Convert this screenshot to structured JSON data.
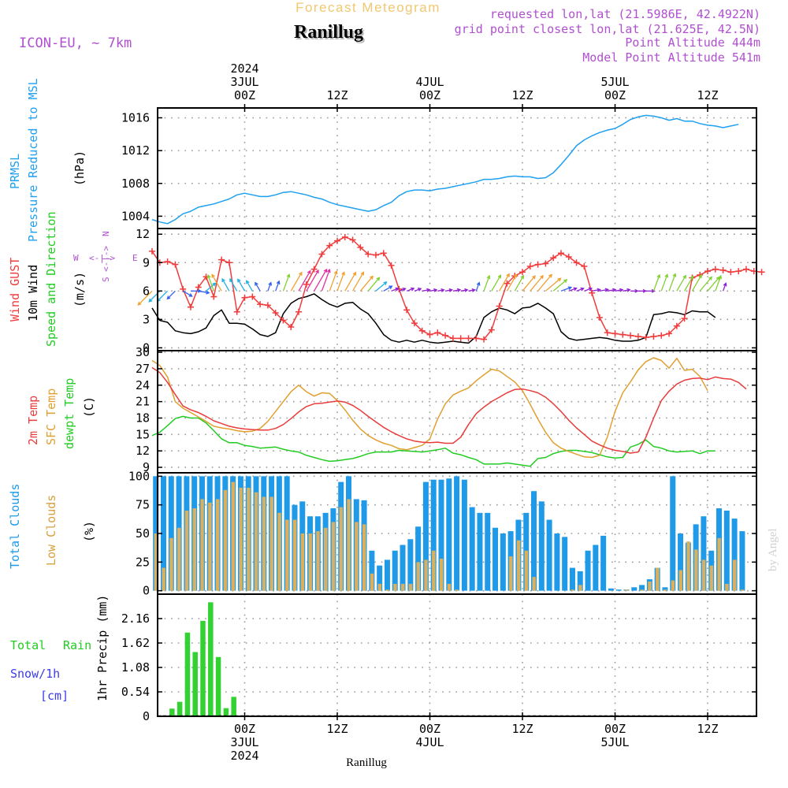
{
  "header": {
    "super_title": "Forecast Meteogram",
    "location": "Ranillug",
    "model": "ICON-EU, ~ 7km",
    "requested": "requested lon,lat (21.5986E, 42.4922N)",
    "grid_point": "grid point closest lon,lat (21.625E, 42.5N)",
    "point_alt": "Point Altitude 444m",
    "model_alt": "Model Point Altitude 541m",
    "footer_location": "Ranillug",
    "credit": "by Angel"
  },
  "colors": {
    "pressure": "#1fa0f0",
    "gust": "#f03c3c",
    "wind": "#000000",
    "temp": "#e83c3c",
    "sfc": "#e0a030",
    "dewpt": "#22cc22",
    "total_clouds": "#1e9ae8",
    "low_clouds": "#d8b060",
    "rain": "#32d232",
    "snow": "#3c3ce6",
    "label_purple": "#b050d0",
    "title_color": "#f0c870"
  },
  "time_axis": {
    "top_labels": [
      {
        "line1": "2024",
        "line2": "3JUL",
        "line3": "00Z",
        "idx": 12
      },
      {
        "line1": "",
        "line2": "",
        "line3": "12Z",
        "idx": 24
      },
      {
        "line1": "",
        "line2": "4JUL",
        "line3": "00Z",
        "idx": 36
      },
      {
        "line1": "",
        "line2": "",
        "line3": "12Z",
        "idx": 48
      },
      {
        "line1": "",
        "line2": "5JUL",
        "line3": "00Z",
        "idx": 60
      },
      {
        "line1": "",
        "line2": "",
        "line3": "12Z",
        "idx": 72
      }
    ],
    "bottom_labels": [
      {
        "line1": "00Z",
        "line2": "3JUL",
        "line3": "2024",
        "idx": 12
      },
      {
        "line1": "12Z",
        "line2": "",
        "line3": "",
        "idx": 24
      },
      {
        "line1": "00Z",
        "line2": "4JUL",
        "line3": "",
        "idx": 36
      },
      {
        "line1": "12Z",
        "line2": "",
        "line3": "",
        "idx": 48
      },
      {
        "line1": "00Z",
        "line2": "5JUL",
        "line3": "",
        "idx": 60
      },
      {
        "line1": "12Z",
        "line2": "",
        "line3": "",
        "idx": 72
      }
    ],
    "n_steps": 77
  },
  "panel_labels": {
    "pressure": [
      "PRMSL",
      "Pressure Reduced to MSL",
      "(hPa)"
    ],
    "wind": [
      "Wind GUST",
      "10m Wind",
      "Speed and Direction",
      "(m/s)"
    ],
    "compass": {
      "w": "W",
      "e": "E",
      "n": "N",
      "s": "S",
      "arrows": "<-|->"
    },
    "temp": [
      "2m Temp",
      "SFC Temp",
      "dewpt Temp",
      "(C)"
    ],
    "clouds": [
      "Total Clouds",
      "Low Clouds",
      "(%)"
    ],
    "precip": [
      "Total",
      "Rain",
      "Snow/1h",
      "[cm]",
      "1hr Precip (mm)"
    ]
  },
  "chart_data": [
    {
      "type": "line",
      "title": "PRMSL Pressure Reduced to MSL",
      "ylabel": "hPa",
      "ylim": [
        1002.5,
        1017.2
      ],
      "yticks": [
        "1004",
        "1008",
        "1012",
        "1016"
      ],
      "series": [
        {
          "name": "PRMSL",
          "values": [
            1003.6,
            1003.3,
            1003.1,
            1003.6,
            1004.3,
            1004.6,
            1005.1,
            1005.3,
            1005.5,
            1005.8,
            1006.1,
            1006.6,
            1006.8,
            1006.6,
            1006.4,
            1006.4,
            1006.6,
            1006.9,
            1007.0,
            1006.8,
            1006.6,
            1006.3,
            1006.1,
            1005.7,
            1005.4,
            1005.2,
            1005.0,
            1004.8,
            1004.6,
            1004.8,
            1005.3,
            1005.7,
            1006.5,
            1007.0,
            1007.2,
            1007.2,
            1007.1,
            1007.3,
            1007.4,
            1007.6,
            1007.8,
            1008.0,
            1008.2,
            1008.5,
            1008.5,
            1008.6,
            1008.8,
            1008.9,
            1008.8,
            1008.8,
            1008.6,
            1008.7,
            1009.3,
            1010.3,
            1011.4,
            1012.6,
            1013.3,
            1013.8,
            1014.2,
            1014.5,
            1014.7,
            1015.2,
            1015.8,
            1016.1,
            1016.3,
            1016.2,
            1016.0,
            1015.7,
            1015.9,
            1015.6,
            1015.6,
            1015.3,
            1015.1,
            1015.0,
            1014.8,
            1015.0,
            1015.2
          ]
        }
      ]
    },
    {
      "type": "line",
      "title": "Wind GUST / 10m Wind Speed and Direction",
      "ylabel": "m/s",
      "ylim": [
        -0.3,
        12.6
      ],
      "yticks": [
        "0",
        "3",
        "6",
        "9",
        "12"
      ],
      "series": [
        {
          "name": "Wind GUST",
          "values": [
            10.2,
            9.0,
            9.1,
            8.8,
            6.2,
            4.3,
            6.4,
            7.5,
            5.4,
            9.3,
            9.0,
            3.8,
            5.3,
            5.4,
            4.6,
            4.5,
            3.7,
            2.9,
            2.2,
            3.8,
            6.7,
            8.3,
            9.9,
            10.8,
            11.3,
            11.7,
            11.4,
            10.6,
            9.9,
            9.8,
            10.0,
            8.7,
            6.2,
            4.0,
            2.6,
            1.8,
            1.4,
            1.6,
            1.3,
            1.0,
            1.0,
            1.0,
            1.0,
            0.9,
            1.9,
            4.4,
            6.8,
            7.6,
            8.0,
            8.6,
            8.8,
            8.9,
            9.5,
            10.0,
            9.6,
            9.0,
            8.6,
            5.8,
            3.2,
            1.6,
            1.5,
            1.4,
            1.3,
            1.2,
            1.1,
            1.2,
            1.3,
            1.5,
            2.3,
            3.1,
            7.4,
            7.7,
            8.1,
            8.3,
            8.2,
            8.0,
            8.1,
            8.3,
            8.1,
            8.0
          ]
        },
        {
          "name": "10m Wind",
          "values": [
            4.2,
            2.9,
            2.7,
            1.8,
            1.6,
            1.5,
            1.7,
            2.1,
            3.4,
            4.0,
            2.6,
            2.6,
            2.5,
            2.0,
            1.4,
            1.2,
            1.6,
            3.6,
            4.7,
            5.2,
            5.4,
            5.7,
            5.1,
            4.6,
            4.3,
            4.7,
            4.8,
            4.1,
            3.6,
            2.6,
            1.4,
            0.8,
            0.6,
            0.8,
            0.6,
            0.8,
            0.6,
            0.5,
            0.6,
            0.7,
            0.6,
            0.5,
            1.2,
            3.2,
            3.8,
            4.2,
            4.0,
            3.6,
            4.2,
            4.3,
            4.7,
            4.2,
            3.6,
            1.7,
            1.0,
            0.8,
            0.9,
            1.0,
            1.1,
            1.0,
            0.8,
            0.7,
            0.7,
            0.8,
            1.1,
            3.5,
            3.6,
            3.8,
            3.7,
            3.5,
            3.9,
            3.8,
            3.8,
            3.2
          ]
        }
      ],
      "wind_dir_deg": [
        45,
        45,
        45,
        45,
        300,
        270,
        280,
        230,
        160,
        150,
        150,
        150,
        150,
        150,
        150,
        200,
        200,
        200,
        210,
        210,
        210,
        210,
        200,
        200,
        200,
        210,
        210,
        220,
        220,
        230,
        240,
        250,
        250,
        250,
        250,
        260,
        260,
        260,
        260,
        260,
        260,
        260,
        200,
        200,
        210,
        210,
        210,
        210,
        220,
        220,
        220,
        230,
        230,
        250,
        250,
        250,
        250,
        260,
        260,
        260,
        260,
        260,
        270,
        270,
        270,
        200,
        200,
        200,
        210,
        210,
        210,
        220,
        220,
        200,
        200
      ]
    },
    {
      "type": "line",
      "title": "2m Temp / SFC Temp / dewpt Temp",
      "ylabel": "C",
      "ylim": [
        8.0,
        30.3
      ],
      "yticks": [
        "9",
        "12",
        "15",
        "18",
        "21",
        "24",
        "27",
        "30"
      ],
      "series": [
        {
          "name": "2m Temp",
          "values": [
            27.2,
            26.3,
            24.5,
            22.3,
            20.2,
            19.5,
            19.0,
            18.3,
            17.5,
            17.0,
            16.5,
            16.2,
            16.0,
            15.9,
            15.8,
            15.8,
            16.1,
            16.8,
            17.9,
            19.1,
            20.1,
            20.6,
            20.7,
            20.9,
            21.1,
            20.9,
            20.3,
            19.4,
            18.3,
            17.3,
            16.3,
            15.5,
            14.8,
            14.2,
            13.8,
            13.6,
            13.5,
            13.6,
            13.4,
            13.4,
            14.5,
            16.8,
            18.8,
            20.0,
            21.0,
            21.8,
            22.6,
            23.2,
            23.3,
            23.0,
            22.6,
            21.8,
            20.6,
            19.2,
            17.6,
            16.2,
            15.0,
            13.8,
            13.1,
            12.5,
            12.1,
            11.9,
            11.6,
            11.8,
            14.5,
            18.0,
            21.2,
            22.9,
            24.2,
            24.9,
            25.2,
            25.3,
            25.0,
            25.5,
            25.2,
            25.1,
            24.5,
            23.3
          ]
        },
        {
          "name": "SFC Temp",
          "values": [
            28.5,
            27.6,
            25.5,
            21.0,
            19.8,
            19.0,
            18.2,
            17.4,
            16.5,
            16.2,
            16.0,
            15.7,
            15.5,
            15.6,
            16.1,
            17.4,
            19.2,
            21.0,
            22.8,
            24.0,
            22.8,
            22.0,
            22.6,
            22.5,
            21.2,
            19.5,
            17.6,
            16.0,
            14.8,
            14.0,
            13.4,
            13.0,
            12.4,
            12.2,
            12.6,
            13.0,
            14.2,
            17.8,
            20.6,
            22.2,
            22.9,
            23.5,
            24.8,
            25.9,
            26.9,
            26.6,
            25.6,
            24.6,
            23.0,
            20.5,
            17.8,
            15.4,
            13.5,
            12.5,
            11.9,
            11.4,
            10.9,
            10.8,
            11.2,
            14.5,
            19.2,
            22.6,
            24.6,
            26.8,
            28.3,
            29.0,
            28.5,
            27.1,
            28.9,
            26.7,
            26.9,
            25.6,
            23.0
          ]
        },
        {
          "name": "dewpt Temp",
          "values": [
            14.8,
            15.4,
            16.6,
            17.9,
            18.3,
            18.0,
            18.0,
            17.1,
            15.7,
            14.2,
            13.5,
            13.5,
            13.0,
            12.8,
            12.5,
            12.6,
            12.7,
            12.3,
            12.0,
            11.8,
            11.2,
            10.8,
            10.4,
            10.1,
            10.2,
            10.4,
            10.6,
            11.0,
            11.5,
            11.8,
            11.8,
            11.8,
            12.1,
            12.0,
            11.9,
            11.8,
            12.0,
            12.2,
            12.5,
            11.6,
            11.3,
            10.8,
            10.4,
            9.6,
            9.6,
            9.6,
            9.8,
            9.6,
            9.4,
            9.2,
            10.6,
            10.8,
            11.5,
            11.9,
            12.1,
            12.1,
            11.9,
            11.7,
            11.3,
            10.9,
            10.7,
            10.8,
            12.7,
            13.2,
            14.0,
            12.8,
            12.5,
            12.0,
            11.8,
            11.9,
            12.0,
            11.5,
            12.0,
            12.0
          ]
        }
      ]
    },
    {
      "type": "bar",
      "title": "Total Clouds / Low Clouds",
      "ylabel": "%",
      "ylim": [
        -3,
        103
      ],
      "yticks": [
        "0",
        "25",
        "50",
        "75",
        "100"
      ],
      "series": [
        {
          "name": "Total Clouds",
          "values": [
            100,
            100,
            100,
            100,
            100,
            100,
            100,
            100,
            100,
            100,
            100,
            100,
            100,
            100,
            100,
            100,
            100,
            100,
            75,
            78,
            65,
            65,
            68,
            72,
            95,
            100,
            80,
            79,
            35,
            22,
            27,
            35,
            40,
            45,
            56,
            95,
            97,
            97,
            98,
            100,
            97,
            73,
            68,
            68,
            55,
            50,
            52,
            62,
            68,
            87,
            78,
            62,
            50,
            47,
            20,
            17,
            35,
            40,
            48,
            2,
            1,
            1,
            3,
            5,
            10,
            20,
            3,
            100,
            50,
            42,
            58,
            65,
            35,
            72,
            70,
            63,
            52
          ]
        },
        {
          "name": "Low Clouds",
          "values": [
            50,
            20,
            46,
            55,
            70,
            72,
            80,
            77,
            80,
            88,
            95,
            90,
            90,
            86,
            82,
            82,
            68,
            62,
            62,
            50,
            50,
            52,
            55,
            60,
            73,
            80,
            60,
            58,
            15,
            6,
            1,
            6,
            6,
            6,
            25,
            27,
            35,
            28,
            6,
            1,
            0,
            0,
            0,
            0,
            0,
            0,
            30,
            44,
            35,
            12,
            0,
            0,
            0,
            0,
            1,
            5,
            0,
            0,
            0,
            0,
            0,
            1,
            0,
            1,
            8,
            20,
            1,
            9,
            18,
            43,
            36,
            27,
            22,
            46,
            6,
            27,
            1
          ]
        }
      ]
    },
    {
      "type": "bar",
      "title": "1hr Precip",
      "ylabel": "1hr Precip (mm)",
      "ylim": [
        0,
        2.7
      ],
      "yticks": [
        "0",
        "0.54",
        "1.08",
        "1.62",
        "2.16"
      ],
      "series": [
        {
          "name": "Total Rain",
          "values": [
            0,
            0,
            0.17,
            0.32,
            1.85,
            1.42,
            2.11,
            2.52,
            1.31,
            0.18,
            0.43
          ]
        },
        {
          "name": "Snow/1h",
          "values": [
            0,
            0,
            0,
            0,
            0,
            0,
            0,
            0,
            0,
            0,
            0
          ]
        }
      ]
    }
  ]
}
